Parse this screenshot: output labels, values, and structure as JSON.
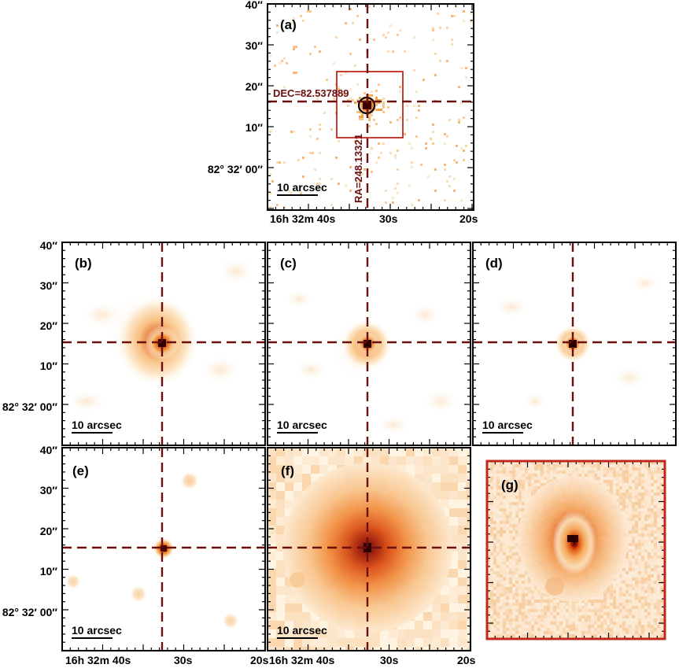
{
  "colors": {
    "background": "#ffffff",
    "frame": "#000000",
    "crosshair": "#6b0f0f",
    "zoom_box": "#c0281e",
    "source_core": "#3a0000"
  },
  "panels": [
    {
      "id": "a",
      "label": "(a)",
      "scalebar": "10 arcsec",
      "show_dec_axis": true,
      "show_ra_axis": true,
      "kind": "counts"
    },
    {
      "id": "b",
      "label": "(b)",
      "scalebar": "10 arcsec",
      "show_dec_axis": true,
      "show_ra_axis": false,
      "kind": "smooth-wide"
    },
    {
      "id": "c",
      "label": "(c)",
      "scalebar": "10 arcsec",
      "show_dec_axis": false,
      "show_ra_axis": false,
      "kind": "smooth-mid"
    },
    {
      "id": "d",
      "label": "(d)",
      "scalebar": "10 arcsec",
      "show_dec_axis": false,
      "show_ra_axis": false,
      "kind": "smooth-narrow"
    },
    {
      "id": "e",
      "label": "(e)",
      "scalebar": "10 arcsec",
      "show_dec_axis": true,
      "show_ra_axis": true,
      "kind": "point"
    },
    {
      "id": "f",
      "label": "(f)",
      "scalebar": "10 arcsec",
      "show_dec_axis": false,
      "show_ra_axis": true,
      "kind": "diffuse"
    },
    {
      "id": "g",
      "label": "(g)",
      "kind": "zoom"
    }
  ],
  "crosshair_labels": {
    "dec": "DEC=82.537889",
    "ra": "RA=248.13321"
  },
  "dec_ticks": [
    "40″",
    "30″",
    "20″",
    "10″",
    "82° 32′ 00″"
  ],
  "ra_ticks": {
    "left": "16h 32m 40s",
    "mid": "30s",
    "right": "20s"
  }
}
